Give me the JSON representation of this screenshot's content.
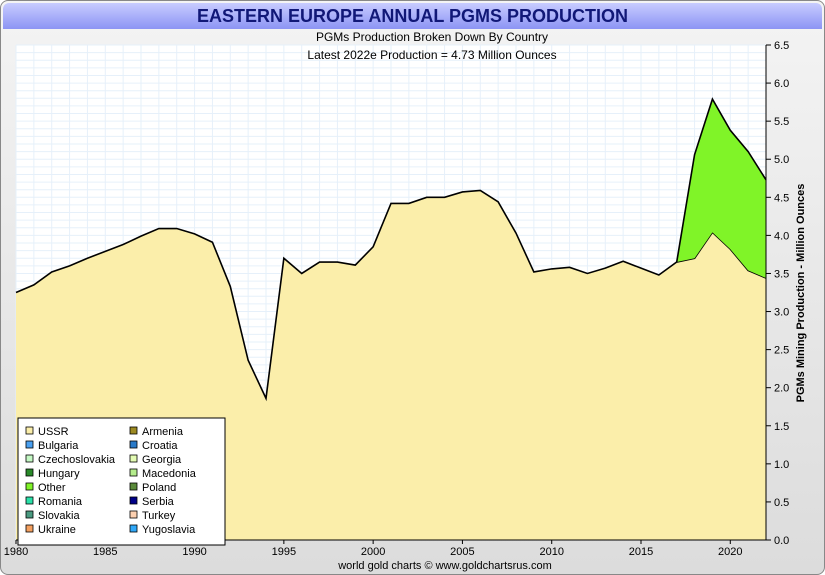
{
  "chart_data": {
    "type": "area",
    "title": "EASTERN EUROPE ANNUAL PGMS PRODUCTION",
    "subtitle": "PGMs Production Broken Down By Country",
    "subtitle2": "Latest 2022e Production = 4.73 Million Ounces",
    "ylabel": "PGMs Mining Production - Million Ounces",
    "xlabel": "",
    "footer": "world gold charts © www.goldchartsrus.com",
    "xlim": [
      1980,
      2022
    ],
    "ylim": [
      0,
      6.5
    ],
    "grid": true,
    "stacked": true,
    "x_ticks": [
      "1980",
      "1985",
      "1990",
      "1995",
      "2000",
      "2005",
      "2010",
      "2015",
      "2020"
    ],
    "y_ticks": [
      "0.0",
      "0.5",
      "1.0",
      "1.5",
      "2.0",
      "2.5",
      "3.0",
      "3.5",
      "4.0",
      "4.5",
      "5.0",
      "5.5",
      "6.0",
      "6.5"
    ],
    "x": [
      1980,
      1981,
      1982,
      1983,
      1984,
      1985,
      1986,
      1987,
      1988,
      1989,
      1990,
      1991,
      1992,
      1993,
      1994,
      1995,
      1996,
      1997,
      1998,
      1999,
      2000,
      2001,
      2002,
      2003,
      2004,
      2005,
      2006,
      2007,
      2008,
      2009,
      2010,
      2011,
      2012,
      2013,
      2014,
      2015,
      2016,
      2017,
      2018,
      2019,
      2020,
      2021,
      2022
    ],
    "series": [
      {
        "name": "USSR",
        "color": "#fbeeaa",
        "values": [
          3.25,
          3.35,
          3.52,
          3.6,
          3.7,
          3.79,
          3.88,
          3.99,
          4.09,
          4.09,
          4.02,
          3.91,
          3.33,
          2.36,
          1.86,
          3.7,
          3.5,
          3.65,
          3.65,
          3.61,
          3.85,
          4.42,
          4.42,
          4.5,
          4.5,
          4.57,
          4.59,
          4.44,
          4.03,
          3.52,
          3.56,
          3.58,
          3.5,
          3.57,
          3.66,
          3.57,
          3.48,
          3.65,
          3.7,
          4.04,
          3.82,
          3.54,
          3.44
        ]
      },
      {
        "name": "Other",
        "color": "#80f428",
        "values": [
          0,
          0,
          0,
          0,
          0,
          0,
          0,
          0,
          0,
          0,
          0,
          0,
          0,
          0,
          0,
          0,
          0,
          0,
          0,
          0,
          0,
          0,
          0,
          0,
          0,
          0,
          0,
          0,
          0,
          0,
          0,
          0,
          0,
          0,
          0,
          0,
          0,
          0,
          1.36,
          1.75,
          1.56,
          1.56,
          1.29
        ]
      }
    ],
    "legend_position": "bottom-left",
    "legend": [
      {
        "name": "USSR",
        "color": "#fbeeaa"
      },
      {
        "name": "Armenia",
        "color": "#9c8a22"
      },
      {
        "name": "Bulgaria",
        "color": "#4aa0f0"
      },
      {
        "name": "Croatia",
        "color": "#2a7ac8"
      },
      {
        "name": "Czechoslovakia",
        "color": "#c4f8c4"
      },
      {
        "name": "Georgia",
        "color": "#e4fcb4"
      },
      {
        "name": "Hungary",
        "color": "#2a8a2a"
      },
      {
        "name": "Macedonia",
        "color": "#b4ec8c"
      },
      {
        "name": "Other",
        "color": "#80f428"
      },
      {
        "name": "Poland",
        "color": "#5a8a3a"
      },
      {
        "name": "Romania",
        "color": "#2ae0a8"
      },
      {
        "name": "Serbia",
        "color": "#000088"
      },
      {
        "name": "Slovakia",
        "color": "#4a9a80"
      },
      {
        "name": "Turkey",
        "color": "#fcd0b0"
      },
      {
        "name": "Ukraine",
        "color": "#f4a060"
      },
      {
        "name": "Yugoslavia",
        "color": "#30a8f8"
      }
    ]
  }
}
